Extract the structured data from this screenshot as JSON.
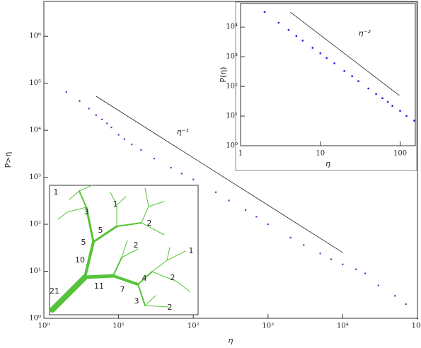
{
  "chart_data": [
    {
      "type": "scatter",
      "x_label": "η",
      "y_label": "P>η",
      "log_x": true,
      "log_y": true,
      "xlim": [
        1,
        100000
      ],
      "ylim": [
        1,
        5500000
      ],
      "xticks": [
        {
          "value": 1,
          "label": "10⁰"
        },
        {
          "value": 10,
          "label": "10¹"
        },
        {
          "value": 100,
          "label": "10²"
        },
        {
          "value": 1000,
          "label": "10³"
        },
        {
          "value": 10000,
          "label": "10⁴"
        },
        {
          "value": 100000,
          "label": "10⁵"
        }
      ],
      "yticks": [
        {
          "value": 1,
          "label": "10⁰"
        },
        {
          "value": 10,
          "label": "10¹"
        },
        {
          "value": 100,
          "label": "10²"
        },
        {
          "value": 1000,
          "label": "10³"
        },
        {
          "value": 10000,
          "label": "10⁴"
        },
        {
          "value": 100000,
          "label": "10⁵"
        },
        {
          "value": 1000000,
          "label": "10⁶"
        }
      ],
      "color": "#7a2cc0",
      "x": [
        2,
        3,
        4,
        5,
        6,
        7,
        8,
        10,
        12,
        15,
        20,
        30,
        50,
        70,
        100,
        200,
        300,
        500,
        700,
        1000,
        2000,
        3000,
        5000,
        7000,
        10000,
        15000,
        20000,
        30000,
        50000,
        70000,
        100000
      ],
      "values": [
        65000,
        42000,
        29000,
        21000,
        17000,
        14000,
        11500,
        8000,
        6500,
        5000,
        3800,
        2500,
        1600,
        1200,
        900,
        480,
        320,
        200,
        145,
        100,
        52,
        36,
        24,
        18,
        14,
        11,
        9,
        5,
        3,
        2,
        1
      ],
      "reference_lines": [
        {
          "x": [
            5,
            10000
          ],
          "y": [
            53000,
            25
          ],
          "label": "η⁻¹",
          "label_x": 60,
          "label_y": 9000
        }
      ]
    },
    {
      "type": "scatter",
      "x_label": "η",
      "y_label": "P(η)",
      "log_x": true,
      "log_y": true,
      "xlim": [
        1,
        155
      ],
      "ylim": [
        1,
        62000
      ],
      "xticks": [
        1,
        10,
        100
      ],
      "yticks": [
        {
          "value": 1,
          "label": "10⁰"
        },
        {
          "value": 10,
          "label": "10¹"
        },
        {
          "value": 100,
          "label": "10²"
        },
        {
          "value": 1000,
          "label": "10³"
        },
        {
          "value": 10000,
          "label": "10⁴"
        }
      ],
      "color": "#1a1ae6",
      "x": [
        2,
        3,
        4,
        5,
        6,
        8,
        10,
        12,
        15,
        20,
        25,
        30,
        40,
        50,
        60,
        70,
        80,
        100,
        120,
        150
      ],
      "values": [
        32000,
        14000,
        8000,
        5000,
        3500,
        2000,
        1300,
        900,
        600,
        330,
        220,
        150,
        85,
        55,
        40,
        30,
        22,
        15,
        10,
        7
      ],
      "reference_lines": [
        {
          "x": [
            4.2,
            98
          ],
          "y": [
            32000,
            49
          ],
          "label": "η⁻²",
          "label_x": 30,
          "label_y": 6000
        }
      ]
    }
  ],
  "tree_inset": {
    "labels": [
      "1",
      "3",
      "1",
      "5",
      "2",
      "5",
      "2",
      "10",
      "1",
      "11",
      "4",
      "2",
      "7",
      "3",
      "2",
      "21"
    ]
  }
}
